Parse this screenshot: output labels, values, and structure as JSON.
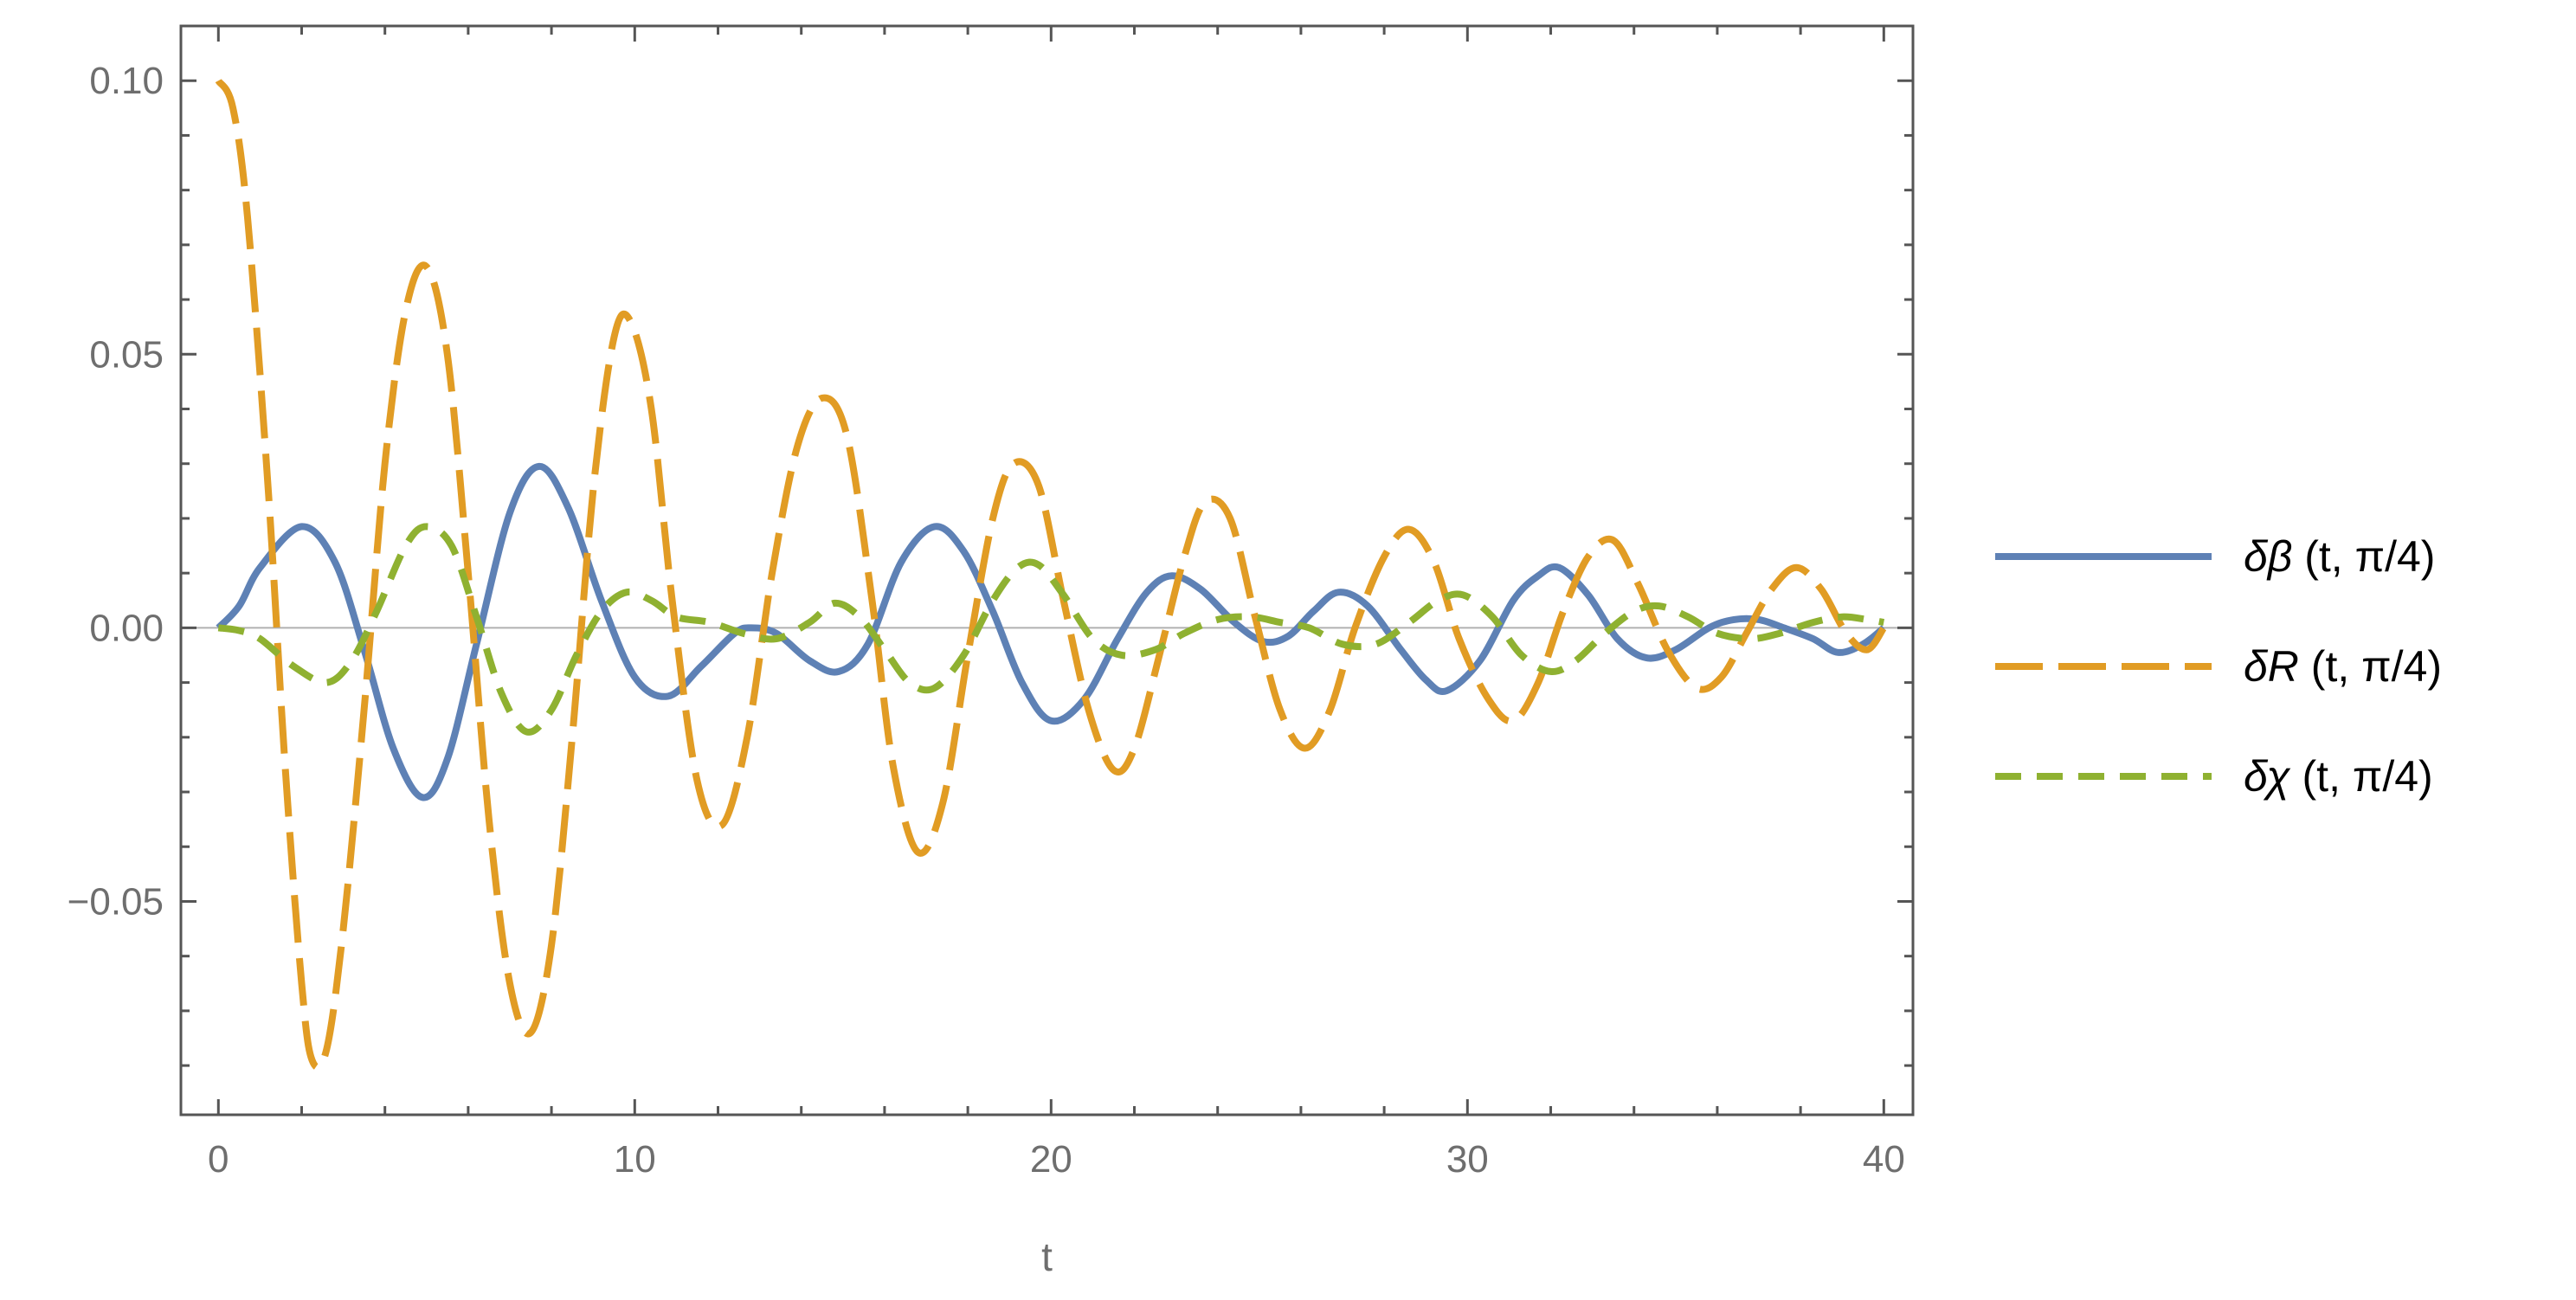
{
  "chart_data": {
    "type": "line",
    "title": "",
    "xlabel": "t",
    "ylabel": "",
    "xlim": [
      -0.9,
      40.7
    ],
    "ylim": [
      -0.089,
      0.11
    ],
    "x_ticks": [
      0,
      10,
      20,
      30,
      40
    ],
    "x_tick_labels": [
      "0",
      "10",
      "20",
      "30",
      "40"
    ],
    "y_ticks": [
      -0.05,
      0.0,
      0.05,
      0.1
    ],
    "y_tick_labels": [
      "−0.05",
      "0.00",
      "0.05",
      "0.10"
    ],
    "grid": false,
    "frame": true,
    "zero_line": true,
    "legend_position": "right",
    "series": [
      {
        "name": "δβ (t, π/4)",
        "name_symbol": "δβ",
        "name_args": " (t, π/4)",
        "color": "#5e81b5",
        "dash": "solid",
        "points": [
          [
            0,
            0
          ],
          [
            0.5,
            0.004
          ],
          [
            1.0,
            0.011
          ],
          [
            2.0,
            0.0185
          ],
          [
            2.8,
            0.012
          ],
          [
            3.5,
            -0.004
          ],
          [
            4.2,
            -0.022
          ],
          [
            4.9,
            -0.031
          ],
          [
            5.5,
            -0.024
          ],
          [
            6.2,
            -0.003
          ],
          [
            7.0,
            0.021
          ],
          [
            7.7,
            0.0295
          ],
          [
            8.4,
            0.022
          ],
          [
            9.2,
            0.005
          ],
          [
            10.0,
            -0.009
          ],
          [
            10.8,
            -0.0125
          ],
          [
            11.6,
            -0.007
          ],
          [
            12.4,
            -0.001
          ],
          [
            12.8,
            0.0
          ],
          [
            13.4,
            -0.001
          ],
          [
            14.2,
            -0.006
          ],
          [
            14.9,
            -0.008
          ],
          [
            15.6,
            -0.003
          ],
          [
            16.4,
            0.012
          ],
          [
            17.2,
            0.0185
          ],
          [
            17.9,
            0.014
          ],
          [
            18.6,
            0.003
          ],
          [
            19.3,
            -0.01
          ],
          [
            20.0,
            -0.017
          ],
          [
            20.8,
            -0.013
          ],
          [
            21.6,
            -0.002
          ],
          [
            22.3,
            0.0065
          ],
          [
            22.9,
            0.0095
          ],
          [
            23.6,
            0.007
          ],
          [
            24.4,
            0.001
          ],
          [
            25.1,
            -0.0025
          ],
          [
            25.7,
            -0.0015
          ],
          [
            26.3,
            0.003
          ],
          [
            26.9,
            0.0065
          ],
          [
            27.6,
            0.004
          ],
          [
            28.4,
            -0.004
          ],
          [
            29.0,
            -0.0095
          ],
          [
            29.5,
            -0.0115
          ],
          [
            30.3,
            -0.006
          ],
          [
            31.1,
            0.005
          ],
          [
            31.7,
            0.0095
          ],
          [
            32.2,
            0.011
          ],
          [
            32.9,
            0.006
          ],
          [
            33.6,
            -0.002
          ],
          [
            34.3,
            -0.0055
          ],
          [
            35.0,
            -0.004
          ],
          [
            35.8,
            0.0
          ],
          [
            36.4,
            0.0015
          ],
          [
            37.0,
            0.0015
          ],
          [
            37.6,
            0.0
          ],
          [
            38.3,
            -0.002
          ],
          [
            38.9,
            -0.0045
          ],
          [
            39.5,
            -0.003
          ],
          [
            40.0,
            0.0
          ]
        ]
      },
      {
        "name": "δR (t, π/4)",
        "name_symbol": "δR",
        "name_args": " (t, π/4)",
        "color": "#e19c24",
        "dash": "long-dash",
        "points": [
          [
            0,
            0.1
          ],
          [
            0.35,
            0.095
          ],
          [
            0.7,
            0.075
          ],
          [
            1.2,
            0.025
          ],
          [
            1.6,
            -0.025
          ],
          [
            2.0,
            -0.065
          ],
          [
            2.25,
            -0.079
          ],
          [
            2.6,
            -0.077
          ],
          [
            3.0,
            -0.055
          ],
          [
            3.5,
            -0.015
          ],
          [
            4.0,
            0.03
          ],
          [
            4.5,
            0.058
          ],
          [
            5.0,
            0.066
          ],
          [
            5.5,
            0.05
          ],
          [
            6.0,
            0.01
          ],
          [
            6.5,
            -0.035
          ],
          [
            7.0,
            -0.065
          ],
          [
            7.5,
            -0.074
          ],
          [
            8.0,
            -0.058
          ],
          [
            8.5,
            -0.02
          ],
          [
            9.0,
            0.025
          ],
          [
            9.5,
            0.053
          ],
          [
            9.9,
            0.056
          ],
          [
            10.4,
            0.04
          ],
          [
            10.9,
            0.005
          ],
          [
            11.5,
            -0.028
          ],
          [
            12.1,
            -0.036
          ],
          [
            12.7,
            -0.02
          ],
          [
            13.3,
            0.01
          ],
          [
            13.9,
            0.033
          ],
          [
            14.5,
            0.042
          ],
          [
            15.1,
            0.035
          ],
          [
            15.7,
            0.005
          ],
          [
            16.2,
            -0.025
          ],
          [
            16.8,
            -0.041
          ],
          [
            17.4,
            -0.032
          ],
          [
            18.0,
            -0.005
          ],
          [
            18.6,
            0.02
          ],
          [
            19.1,
            0.03
          ],
          [
            19.7,
            0.026
          ],
          [
            20.3,
            0.005
          ],
          [
            20.9,
            -0.015
          ],
          [
            21.5,
            -0.026
          ],
          [
            22.0,
            -0.022
          ],
          [
            22.6,
            -0.005
          ],
          [
            23.2,
            0.013
          ],
          [
            23.7,
            0.023
          ],
          [
            24.3,
            0.02
          ],
          [
            24.9,
            0.002
          ],
          [
            25.5,
            -0.015
          ],
          [
            26.1,
            -0.022
          ],
          [
            26.7,
            -0.015
          ],
          [
            27.3,
            0.0
          ],
          [
            28.0,
            0.013
          ],
          [
            28.6,
            0.018
          ],
          [
            29.2,
            0.012
          ],
          [
            29.8,
            -0.002
          ],
          [
            30.5,
            -0.013
          ],
          [
            31.1,
            -0.017
          ],
          [
            31.7,
            -0.01
          ],
          [
            32.3,
            0.003
          ],
          [
            32.9,
            0.013
          ],
          [
            33.5,
            0.016
          ],
          [
            34.1,
            0.008
          ],
          [
            34.8,
            -0.004
          ],
          [
            35.5,
            -0.011
          ],
          [
            36.1,
            -0.009
          ],
          [
            36.7,
            -0.001
          ],
          [
            37.3,
            0.007
          ],
          [
            37.9,
            0.011
          ],
          [
            38.5,
            0.007
          ],
          [
            39.1,
            -0.001
          ],
          [
            39.6,
            -0.004
          ],
          [
            40.0,
            0.0
          ]
        ]
      },
      {
        "name": "δχ (t, π/4)",
        "name_symbol": "δχ",
        "name_args": " (t, π/4)",
        "color": "#8fb131",
        "dash": "short-dash",
        "points": [
          [
            0,
            0
          ],
          [
            0.5,
            -0.0005
          ],
          [
            1.0,
            -0.002
          ],
          [
            1.8,
            -0.007
          ],
          [
            2.6,
            -0.01
          ],
          [
            3.2,
            -0.006
          ],
          [
            3.8,
            0.003
          ],
          [
            4.5,
            0.015
          ],
          [
            5.0,
            0.0185
          ],
          [
            5.6,
            0.015
          ],
          [
            6.2,
            0.002
          ],
          [
            6.8,
            -0.012
          ],
          [
            7.4,
            -0.019
          ],
          [
            8.0,
            -0.015
          ],
          [
            8.6,
            -0.005
          ],
          [
            9.2,
            0.003
          ],
          [
            9.8,
            0.0065
          ],
          [
            10.4,
            0.005
          ],
          [
            11.0,
            0.002
          ],
          [
            11.8,
            0.001
          ],
          [
            12.6,
            -0.001
          ],
          [
            13.4,
            -0.002
          ],
          [
            14.2,
            0.001
          ],
          [
            14.8,
            0.0045
          ],
          [
            15.4,
            0.002
          ],
          [
            16.0,
            -0.004
          ],
          [
            16.6,
            -0.01
          ],
          [
            17.2,
            -0.011
          ],
          [
            17.9,
            -0.005
          ],
          [
            18.6,
            0.005
          ],
          [
            19.2,
            0.011
          ],
          [
            19.7,
            0.0115
          ],
          [
            20.3,
            0.006
          ],
          [
            21.0,
            -0.002
          ],
          [
            21.7,
            -0.005
          ],
          [
            22.5,
            -0.004
          ],
          [
            23.2,
            -0.001
          ],
          [
            24.0,
            0.0015
          ],
          [
            24.8,
            0.002
          ],
          [
            25.5,
            0.001
          ],
          [
            26.2,
            0.0
          ],
          [
            27.0,
            -0.003
          ],
          [
            27.8,
            -0.003
          ],
          [
            28.6,
            0.001
          ],
          [
            29.3,
            0.005
          ],
          [
            29.9,
            0.006
          ],
          [
            30.6,
            0.002
          ],
          [
            31.3,
            -0.005
          ],
          [
            32.0,
            -0.008
          ],
          [
            32.6,
            -0.006
          ],
          [
            33.3,
            -0.001
          ],
          [
            34.0,
            0.003
          ],
          [
            34.6,
            0.004
          ],
          [
            35.3,
            0.002
          ],
          [
            36.0,
            -0.001
          ],
          [
            36.8,
            -0.002
          ],
          [
            37.5,
            -0.001
          ],
          [
            38.3,
            0.001
          ],
          [
            39.0,
            0.002
          ],
          [
            39.6,
            0.0015
          ],
          [
            40.0,
            0.001
          ]
        ]
      }
    ]
  }
}
